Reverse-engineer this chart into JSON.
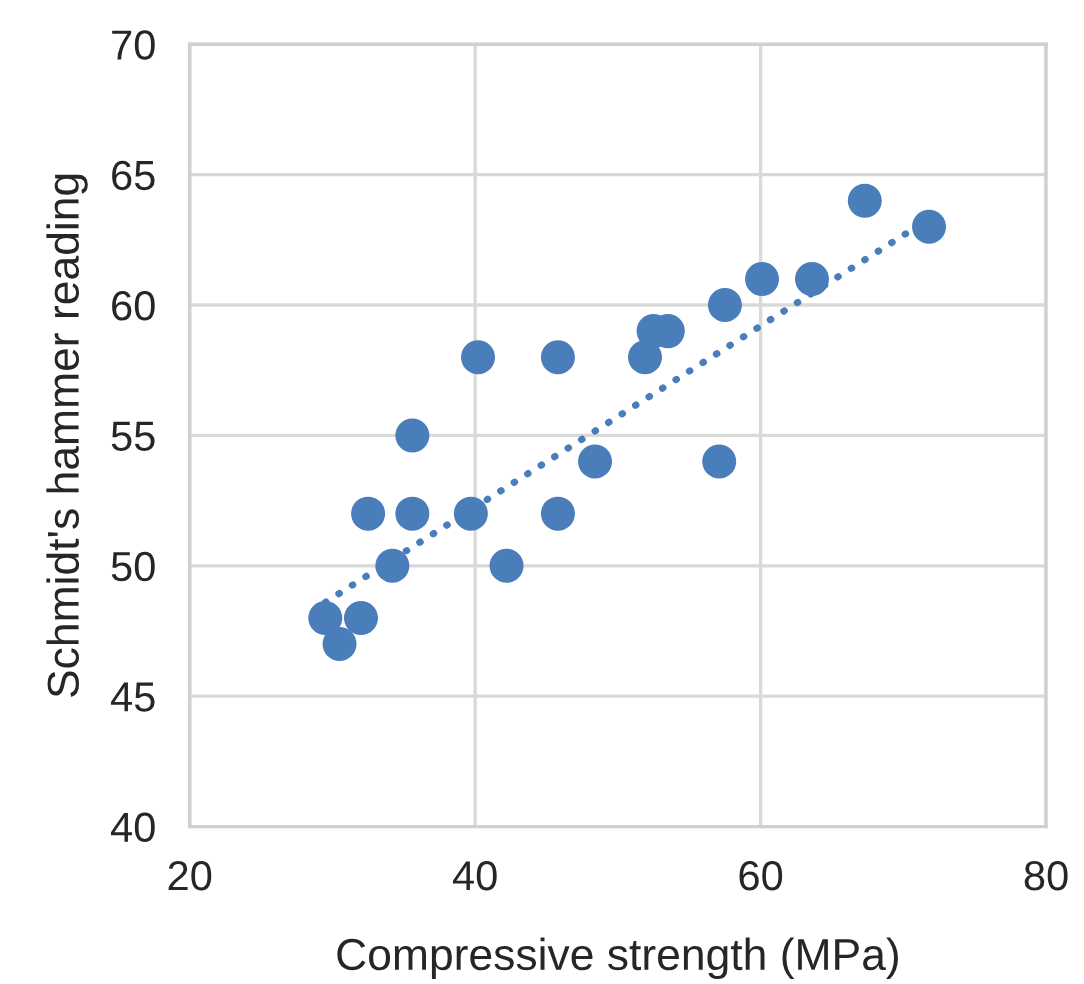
{
  "chart_data": {
    "type": "scatter",
    "xlabel": "Compressive strength (MPa)",
    "ylabel": "Schmidt's hammer reading",
    "xlim": [
      20,
      80
    ],
    "xticks": [
      20,
      40,
      60,
      80
    ],
    "ylim": [
      40,
      70
    ],
    "yticks": [
      40,
      45,
      50,
      55,
      60,
      65,
      70
    ],
    "grid": true,
    "series": [
      {
        "marker": "circle",
        "color": "#4a7ebb",
        "x": [
          29.5,
          30.5,
          32.0,
          32.5,
          34.2,
          35.6,
          35.6,
          39.7,
          40.2,
          42.2,
          45.8,
          45.8,
          48.4,
          51.9,
          52.5,
          53.5,
          57.1,
          57.5,
          60.1,
          63.6,
          67.3,
          71.8
        ],
        "values": [
          48,
          47,
          48,
          52,
          50,
          55,
          52,
          52,
          58,
          50,
          58,
          52,
          54,
          58,
          59,
          59,
          54,
          60,
          61,
          61,
          64,
          63
        ]
      },
      {
        "type": "line",
        "color": "#4a7ebb",
        "line_style": "dotted",
        "marker": "none",
        "x": [
          29.5,
          71.8
        ],
        "values": [
          48.6,
          63.3
        ]
      }
    ]
  }
}
